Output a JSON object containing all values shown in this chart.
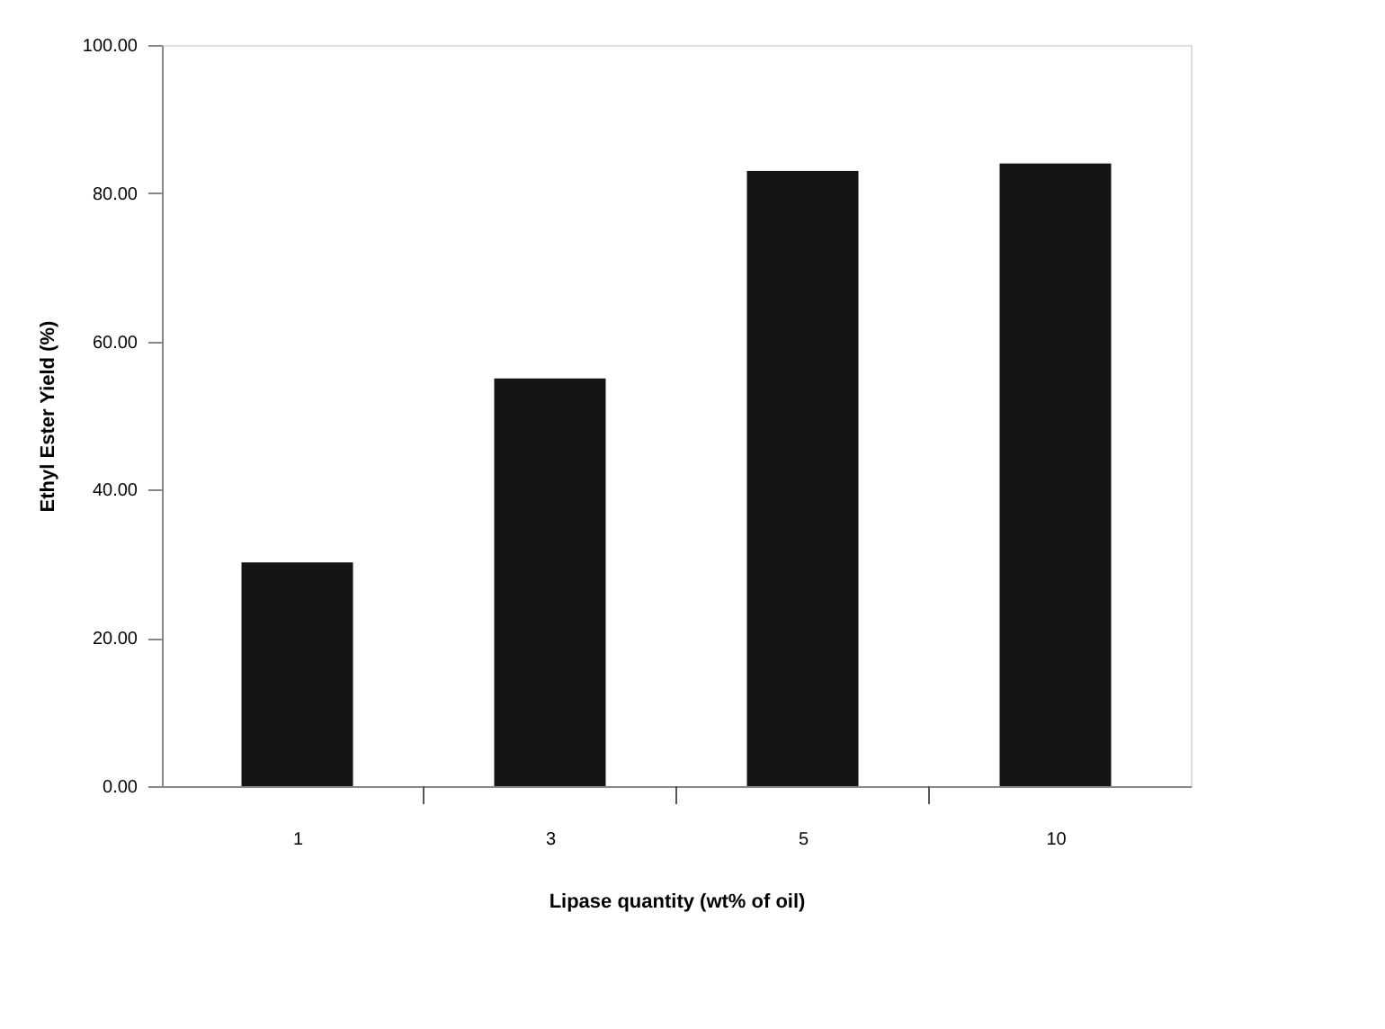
{
  "chart_data": {
    "type": "bar",
    "xlabel": "Lipase quantity (wt% of oil)",
    "ylabel": "Ethyl Ester Yield (%)",
    "categories": [
      "1",
      "3",
      "5",
      "10"
    ],
    "values": [
      30.2,
      55.0,
      83.0,
      84.0
    ],
    "color": "#141414",
    "ylim": [
      0,
      100
    ],
    "yticks": [
      {
        "value": 0,
        "label": "0.00"
      },
      {
        "value": 20,
        "label": "20.00"
      },
      {
        "value": 40,
        "label": "40.00"
      },
      {
        "value": 60,
        "label": "60.00"
      },
      {
        "value": 80,
        "label": "80.00"
      },
      {
        "value": 100,
        "label": "100.00"
      }
    ],
    "grid": false
  }
}
